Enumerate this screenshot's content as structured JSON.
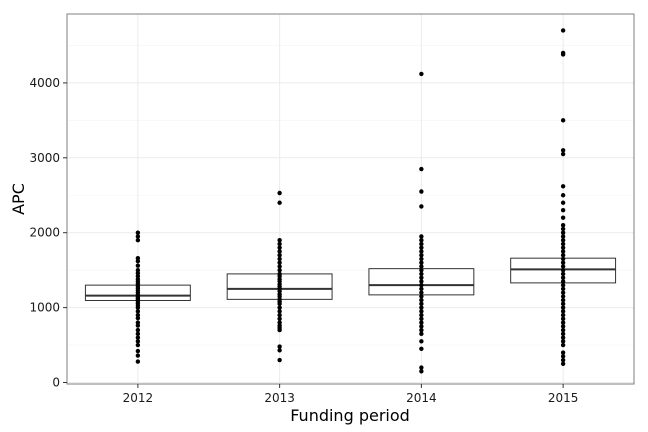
{
  "chart_data": {
    "type": "boxplot",
    "title": "",
    "xlabel": "Funding period",
    "ylabel": "APC",
    "categories": [
      "2012",
      "2013",
      "2014",
      "2015"
    ],
    "ylim": [
      -20,
      4920
    ],
    "yticks": [
      0,
      1000,
      2000,
      3000,
      4000
    ],
    "grid": true,
    "legend": "none",
    "boxes": [
      {
        "category": "2012",
        "q1": 1095,
        "median": 1160,
        "q3": 1300
      },
      {
        "category": "2013",
        "q1": 1110,
        "median": 1250,
        "q3": 1450
      },
      {
        "category": "2014",
        "q1": 1170,
        "median": 1300,
        "q3": 1520
      },
      {
        "category": "2015",
        "q1": 1330,
        "median": 1510,
        "q3": 1660
      }
    ],
    "points": [
      {
        "category": "2012",
        "values": [
          280,
          360,
          420,
          500,
          550,
          600,
          650,
          700,
          760,
          800,
          860,
          900,
          950,
          1000,
          1030,
          1060,
          1090,
          1110,
          1130,
          1150,
          1170,
          1200,
          1230,
          1260,
          1290,
          1320,
          1350,
          1380,
          1420,
          1460,
          1500,
          1560,
          1620,
          1660,
          1900,
          1950,
          2000
        ]
      },
      {
        "category": "2013",
        "values": [
          300,
          430,
          480,
          700,
          730,
          760,
          800,
          850,
          900,
          950,
          1000,
          1050,
          1080,
          1110,
          1150,
          1180,
          1220,
          1250,
          1280,
          1310,
          1350,
          1380,
          1420,
          1450,
          1500,
          1550,
          1600,
          1650,
          1700,
          1750,
          1800,
          1850,
          1900,
          2400,
          2530
        ]
      },
      {
        "category": "2014",
        "values": [
          150,
          200,
          450,
          550,
          650,
          700,
          750,
          800,
          850,
          900,
          950,
          1000,
          1050,
          1100,
          1150,
          1200,
          1250,
          1300,
          1350,
          1400,
          1450,
          1500,
          1550,
          1600,
          1650,
          1700,
          1750,
          1800,
          1850,
          1900,
          1950,
          2350,
          2550,
          2850,
          4120
        ]
      },
      {
        "category": "2015",
        "values": [
          250,
          300,
          350,
          400,
          500,
          550,
          600,
          650,
          700,
          750,
          800,
          850,
          900,
          950,
          1000,
          1050,
          1100,
          1150,
          1200,
          1250,
          1300,
          1350,
          1400,
          1450,
          1500,
          1550,
          1600,
          1650,
          1700,
          1750,
          1800,
          1850,
          1900,
          1950,
          2000,
          2050,
          2100,
          2200,
          2300,
          2400,
          2500,
          2620,
          3050,
          3100,
          3500,
          4380,
          4400,
          4700
        ]
      }
    ]
  }
}
